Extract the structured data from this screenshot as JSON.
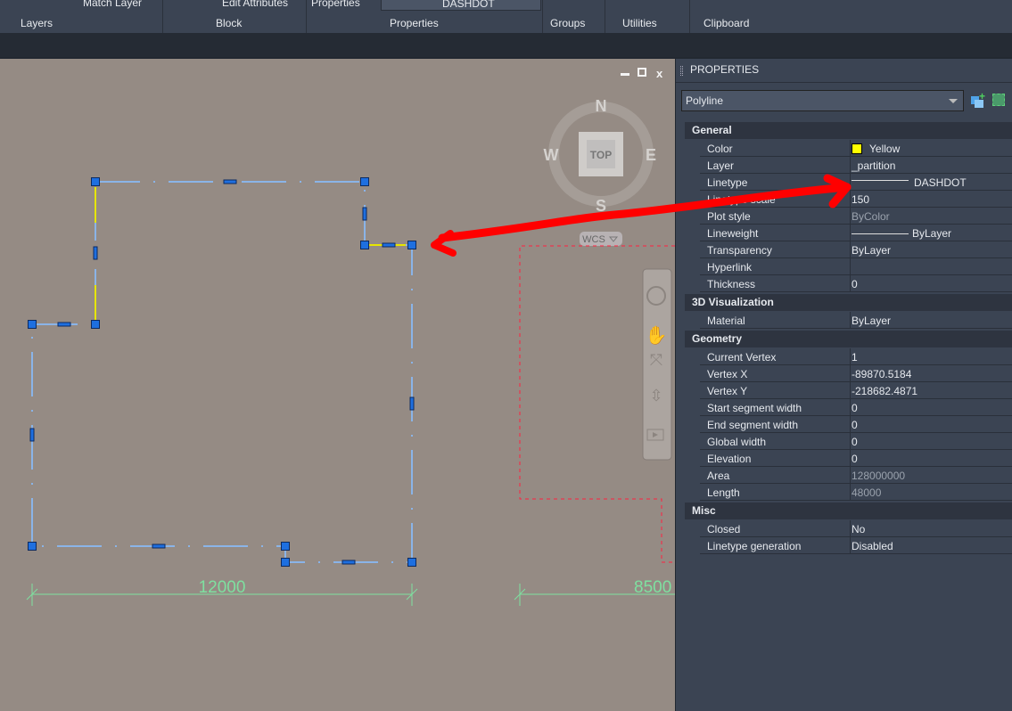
{
  "ribbon": {
    "top_items": [
      "Match Layer",
      "Edit Attributes",
      "Properties",
      "DASHDOT"
    ],
    "panels": [
      "Layers",
      "Block",
      "Properties",
      "Groups",
      "Utilities",
      "Clipboard"
    ]
  },
  "viewcube": {
    "north": "N",
    "south": "S",
    "east": "E",
    "west": "W",
    "face": "TOP",
    "ucs": "WCS"
  },
  "drawing": {
    "dim1": "12000",
    "dim2": "8500",
    "polyline_color": "#8ab4e8",
    "grip_color": "#1e6fe0",
    "dimension_color": "#7ee0a0",
    "annotation_color": "#ff0000"
  },
  "properties": {
    "title": "PROPERTIES",
    "selected": "Polyline",
    "sections": [
      {
        "name": "General",
        "rows": [
          {
            "label": "Color",
            "value": "Yellow",
            "swatch": "#ffff00"
          },
          {
            "label": "Layer",
            "value": "_partition"
          },
          {
            "label": "Linetype",
            "value": "DASHDOT"
          },
          {
            "label": "Linetype scale",
            "value": "150"
          },
          {
            "label": "Plot style",
            "value": "ByColor"
          },
          {
            "label": "Lineweight",
            "value": "ByLayer"
          },
          {
            "label": "Transparency",
            "value": "ByLayer"
          },
          {
            "label": "Hyperlink",
            "value": ""
          },
          {
            "label": "Thickness",
            "value": "0"
          }
        ]
      },
      {
        "name": "3D Visualization",
        "rows": [
          {
            "label": "Material",
            "value": "ByLayer"
          }
        ]
      },
      {
        "name": "Geometry",
        "rows": [
          {
            "label": "Current Vertex",
            "value": "1"
          },
          {
            "label": "Vertex X",
            "value": "-89870.5184"
          },
          {
            "label": "Vertex Y",
            "value": "-218682.4871"
          },
          {
            "label": "Start segment width",
            "value": "0"
          },
          {
            "label": "End segment width",
            "value": "0"
          },
          {
            "label": "Global width",
            "value": "0"
          },
          {
            "label": "Elevation",
            "value": "0"
          },
          {
            "label": "Area",
            "value": "128000000"
          },
          {
            "label": "Length",
            "value": "48000"
          }
        ]
      },
      {
        "name": "Misc",
        "rows": [
          {
            "label": "Closed",
            "value": "No"
          },
          {
            "label": "Linetype generation",
            "value": "Disabled"
          }
        ]
      }
    ]
  }
}
